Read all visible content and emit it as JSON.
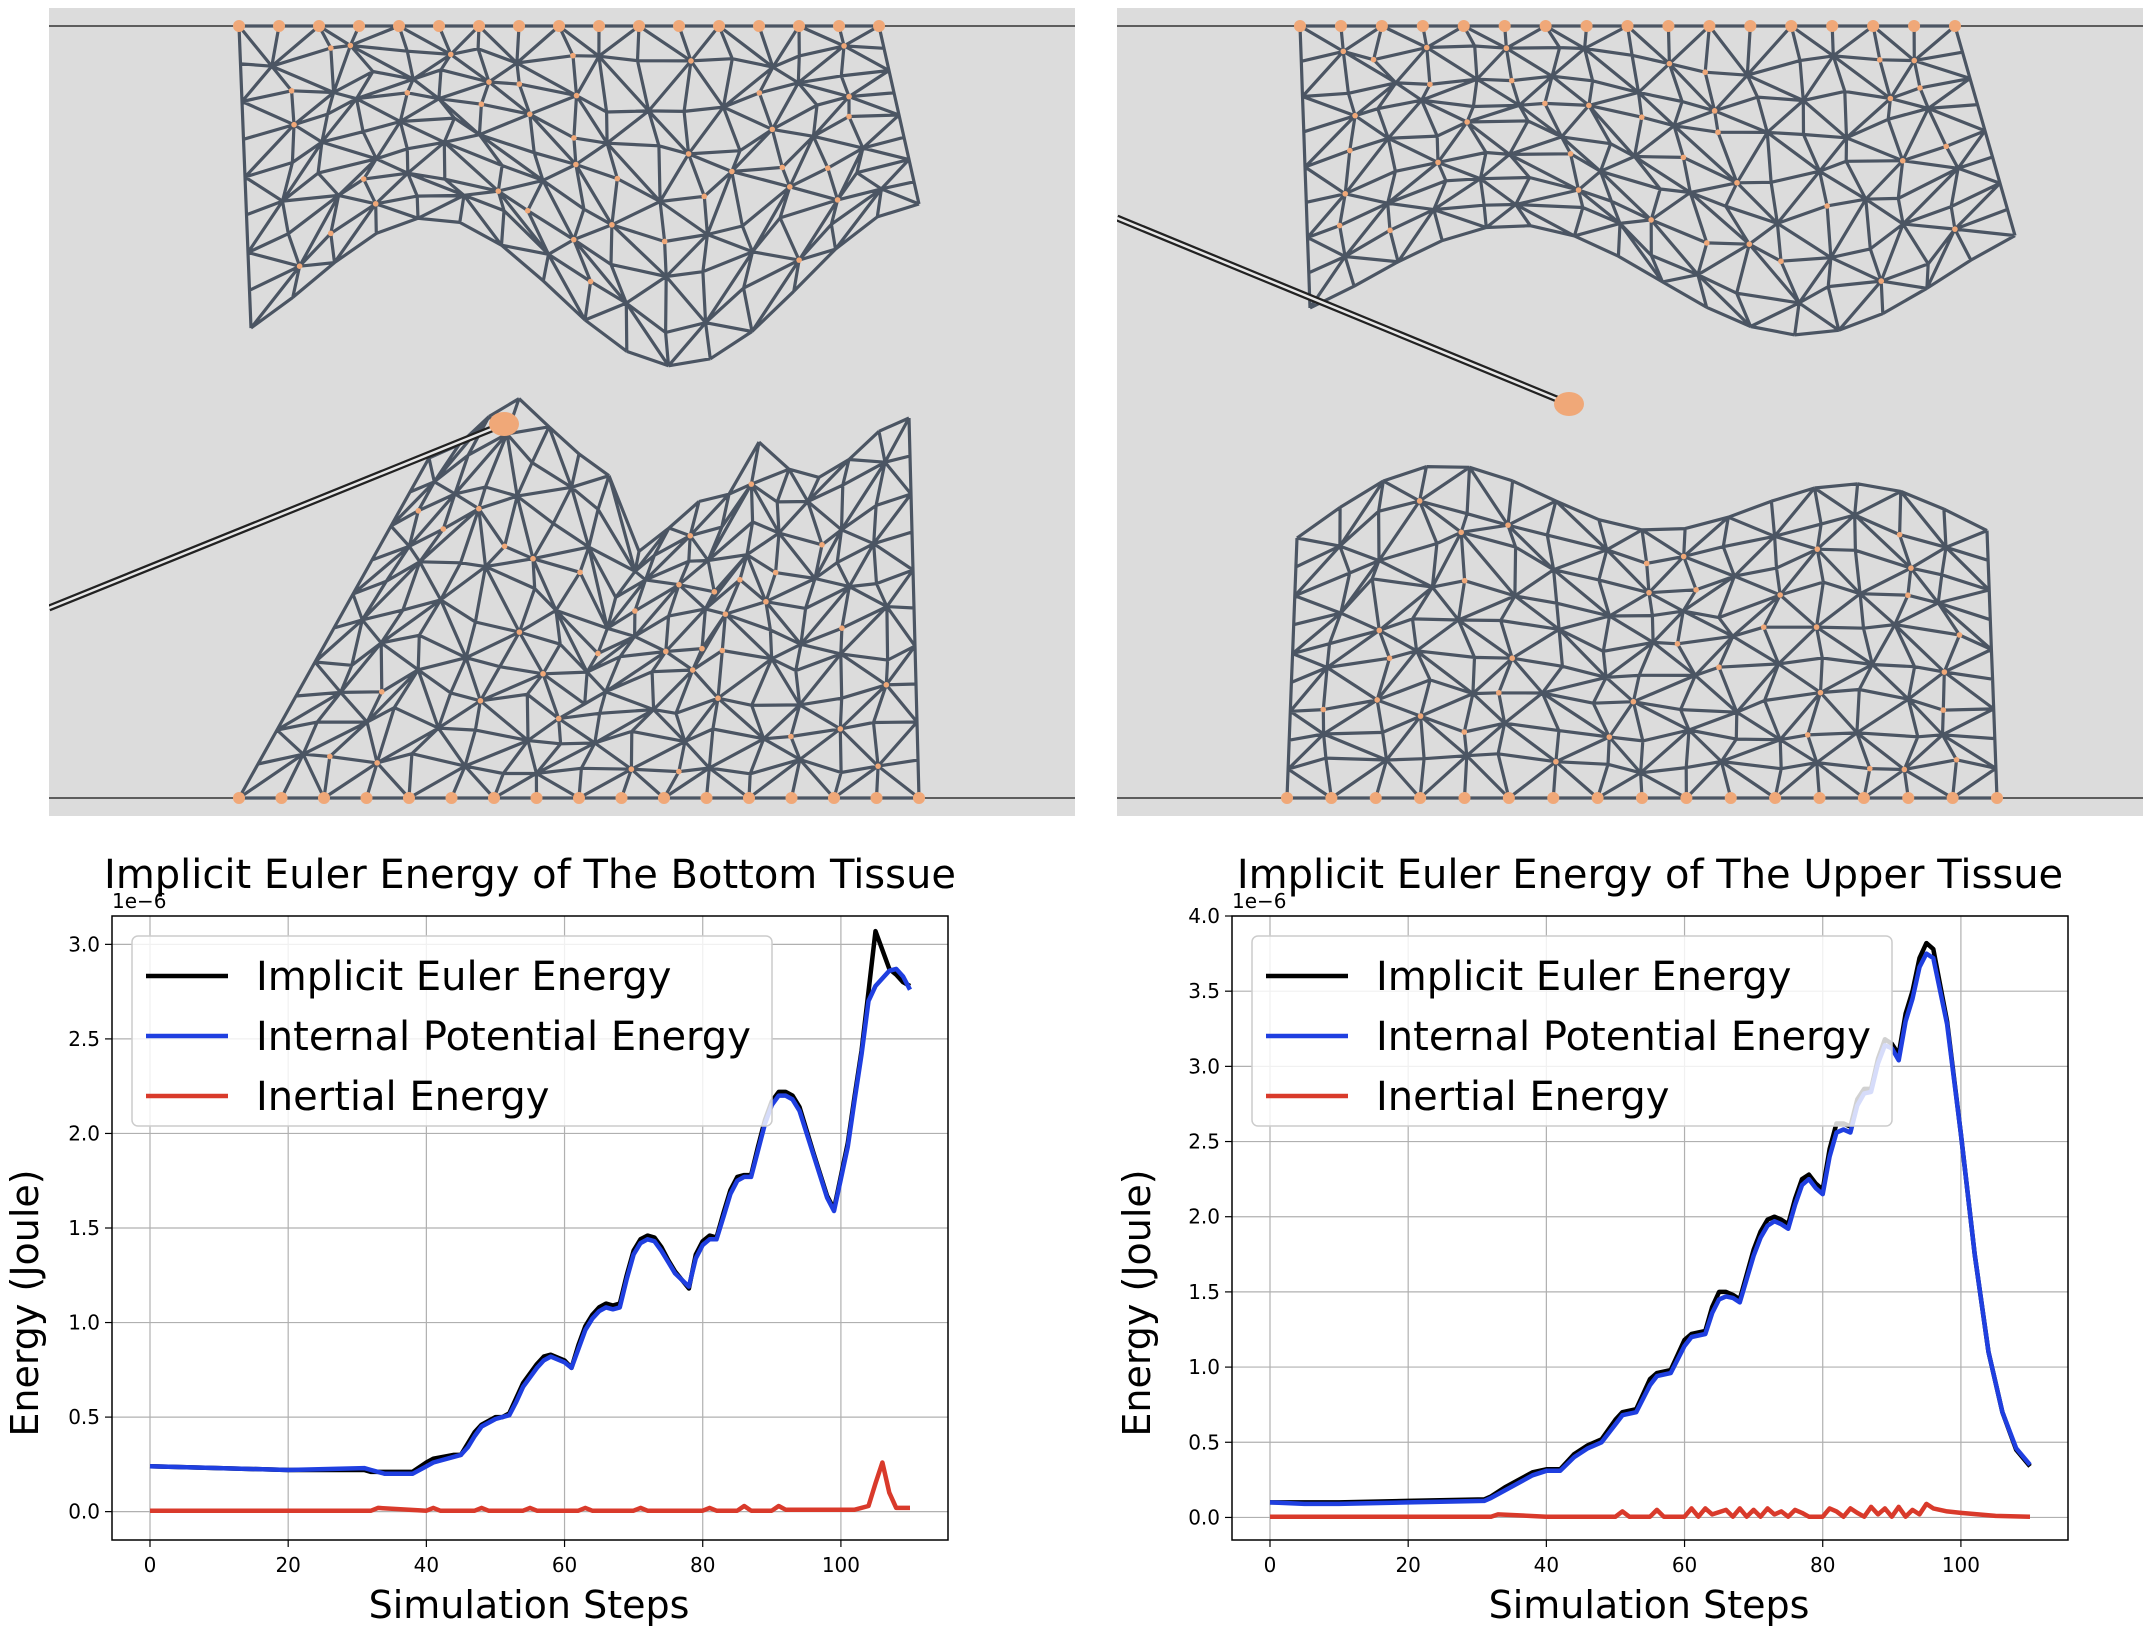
{
  "simulation": {
    "background": "#dcdcdc",
    "mesh_edge_color": "#4b5563",
    "node_color": "#f0a878",
    "panels": [
      {
        "name": "bottom-tissue-grasp"
      },
      {
        "name": "upper-tissue-grasp"
      }
    ]
  },
  "chart_data": [
    {
      "type": "line",
      "title": "Implicit Euler Energy of The Bottom Tissue",
      "xlabel": "Simulation Steps",
      "ylabel": "Energy (Joule)",
      "offset_text": "1e−6",
      "xlim": [
        -5.5,
        115.5
      ],
      "ylim": [
        -0.15,
        3.15
      ],
      "xticks": [
        0,
        20,
        40,
        60,
        80,
        100
      ],
      "yticks": [
        0.0,
        0.5,
        1.0,
        1.5,
        2.0,
        2.5,
        3.0
      ],
      "ytick_labels": [
        "0.0",
        "0.5",
        "1.0",
        "1.5",
        "2.0",
        "2.5",
        "3.0"
      ],
      "grid": true,
      "legend_position": "upper-left",
      "series": [
        {
          "name": "Implicit Euler Energy",
          "color": "#000000",
          "x": [
            0,
            10,
            20,
            31,
            32,
            34,
            38,
            40,
            41,
            44,
            45,
            46,
            47,
            48,
            50,
            51,
            52,
            53,
            54,
            56,
            57,
            58,
            60,
            61,
            62,
            63,
            64,
            65,
            66,
            67,
            68,
            69,
            70,
            71,
            72,
            73,
            74,
            75,
            76,
            78,
            79,
            80,
            81,
            82,
            83,
            84,
            85,
            86,
            87,
            88,
            89,
            90,
            91,
            92,
            93,
            94,
            96,
            98,
            99,
            101,
            102,
            103,
            104,
            105,
            106,
            107,
            108,
            109,
            110
          ],
          "y": [
            0.24,
            0.23,
            0.22,
            0.22,
            0.21,
            0.21,
            0.21,
            0.26,
            0.28,
            0.3,
            0.3,
            0.36,
            0.42,
            0.46,
            0.5,
            0.5,
            0.52,
            0.6,
            0.68,
            0.78,
            0.82,
            0.83,
            0.8,
            0.76,
            0.88,
            0.98,
            1.04,
            1.08,
            1.1,
            1.09,
            1.1,
            1.25,
            1.38,
            1.44,
            1.46,
            1.45,
            1.4,
            1.33,
            1.27,
            1.18,
            1.36,
            1.43,
            1.46,
            1.45,
            1.58,
            1.7,
            1.77,
            1.78,
            1.78,
            1.93,
            2.07,
            2.17,
            2.22,
            2.22,
            2.2,
            2.14,
            1.9,
            1.67,
            1.6,
            1.95,
            2.2,
            2.44,
            2.75,
            3.07,
            2.97,
            2.87,
            2.84,
            2.8,
            2.78
          ]
        },
        {
          "name": "Internal Potential Energy",
          "color": "#1f3fe0",
          "x": [
            0,
            10,
            20,
            31,
            32,
            34,
            38,
            40,
            41,
            44,
            45,
            46,
            47,
            48,
            50,
            51,
            52,
            53,
            54,
            56,
            57,
            58,
            60,
            61,
            62,
            63,
            64,
            65,
            66,
            67,
            68,
            69,
            70,
            71,
            72,
            73,
            74,
            75,
            76,
            78,
            79,
            80,
            81,
            82,
            83,
            84,
            85,
            86,
            87,
            88,
            89,
            90,
            91,
            92,
            93,
            94,
            96,
            98,
            99,
            101,
            102,
            103,
            104,
            105,
            106,
            107,
            108,
            109,
            110
          ],
          "y": [
            0.24,
            0.23,
            0.22,
            0.23,
            0.22,
            0.2,
            0.2,
            0.24,
            0.26,
            0.29,
            0.3,
            0.34,
            0.4,
            0.45,
            0.49,
            0.5,
            0.51,
            0.58,
            0.66,
            0.76,
            0.8,
            0.82,
            0.79,
            0.76,
            0.86,
            0.96,
            1.02,
            1.06,
            1.08,
            1.07,
            1.08,
            1.23,
            1.36,
            1.42,
            1.44,
            1.43,
            1.38,
            1.32,
            1.26,
            1.19,
            1.34,
            1.41,
            1.44,
            1.44,
            1.56,
            1.68,
            1.75,
            1.77,
            1.77,
            1.91,
            2.05,
            2.15,
            2.2,
            2.2,
            2.18,
            2.12,
            1.89,
            1.66,
            1.59,
            1.93,
            2.18,
            2.42,
            2.7,
            2.78,
            2.82,
            2.86,
            2.87,
            2.83,
            2.76
          ]
        },
        {
          "name": "Inertial Energy",
          "color": "#d93a2b",
          "x": [
            0,
            10,
            20,
            30,
            32,
            33,
            40,
            41,
            42,
            47,
            48,
            49,
            54,
            55,
            56,
            62,
            63,
            64,
            70,
            71,
            72,
            80,
            81,
            82,
            85,
            86,
            87,
            90,
            91,
            92,
            95,
            100,
            102,
            104,
            105,
            106,
            107,
            108,
            110
          ],
          "y": [
            0.005,
            0.005,
            0.005,
            0.005,
            0.005,
            0.02,
            0.005,
            0.02,
            0.005,
            0.005,
            0.02,
            0.005,
            0.005,
            0.02,
            0.005,
            0.005,
            0.02,
            0.005,
            0.005,
            0.02,
            0.005,
            0.005,
            0.02,
            0.005,
            0.005,
            0.03,
            0.005,
            0.005,
            0.03,
            0.01,
            0.01,
            0.01,
            0.01,
            0.03,
            0.15,
            0.26,
            0.1,
            0.02,
            0.02
          ]
        }
      ]
    },
    {
      "type": "line",
      "title": "Implicit Euler Energy of The Upper Tissue",
      "xlabel": "Simulation Steps",
      "ylabel": "Energy (Joule)",
      "offset_text": "1e−6",
      "xlim": [
        -5.5,
        115.5
      ],
      "ylim": [
        -0.15,
        4.0
      ],
      "xticks": [
        0,
        20,
        40,
        60,
        80,
        100
      ],
      "yticks": [
        0.0,
        0.5,
        1.0,
        1.5,
        2.0,
        2.5,
        3.0,
        3.5,
        4.0
      ],
      "ytick_labels": [
        "0.0",
        "0.5",
        "1.0",
        "1.5",
        "2.0",
        "2.5",
        "3.0",
        "3.5",
        "4.0"
      ],
      "grid": true,
      "legend_position": "upper-left",
      "series": [
        {
          "name": "Implicit Euler Energy",
          "color": "#000000",
          "x": [
            0,
            5,
            10,
            20,
            31,
            32,
            34,
            38,
            40,
            42,
            44,
            46,
            48,
            50,
            51,
            53,
            55,
            56,
            58,
            60,
            61,
            63,
            64,
            65,
            66,
            67,
            68,
            70,
            71,
            72,
            73,
            74,
            75,
            76,
            77,
            78,
            79,
            80,
            81,
            82,
            83,
            84,
            85,
            86,
            87,
            88,
            89,
            90,
            91,
            92,
            93,
            94,
            95,
            96,
            98,
            100,
            102,
            104,
            106,
            108,
            110
          ],
          "y": [
            0.1,
            0.1,
            0.1,
            0.11,
            0.12,
            0.14,
            0.2,
            0.3,
            0.32,
            0.32,
            0.42,
            0.48,
            0.52,
            0.65,
            0.7,
            0.72,
            0.92,
            0.96,
            0.98,
            1.18,
            1.22,
            1.24,
            1.4,
            1.5,
            1.5,
            1.48,
            1.45,
            1.78,
            1.9,
            1.98,
            2.0,
            1.98,
            1.95,
            2.12,
            2.25,
            2.28,
            2.22,
            2.18,
            2.45,
            2.62,
            2.62,
            2.6,
            2.78,
            2.85,
            2.85,
            3.05,
            3.18,
            3.15,
            3.08,
            3.35,
            3.5,
            3.72,
            3.82,
            3.78,
            3.3,
            2.55,
            1.75,
            1.1,
            0.7,
            0.45,
            0.34
          ]
        },
        {
          "name": "Internal Potential Energy",
          "color": "#1f3fe0",
          "x": [
            0,
            5,
            10,
            20,
            31,
            32,
            34,
            38,
            40,
            42,
            44,
            46,
            48,
            50,
            51,
            53,
            55,
            56,
            58,
            60,
            61,
            63,
            64,
            65,
            66,
            67,
            68,
            70,
            71,
            72,
            73,
            74,
            75,
            76,
            77,
            78,
            79,
            80,
            81,
            82,
            83,
            84,
            85,
            86,
            87,
            88,
            89,
            90,
            91,
            92,
            93,
            94,
            95,
            96,
            98,
            100,
            102,
            104,
            106,
            108,
            110
          ],
          "y": [
            0.1,
            0.09,
            0.09,
            0.1,
            0.11,
            0.13,
            0.18,
            0.28,
            0.31,
            0.31,
            0.4,
            0.46,
            0.5,
            0.62,
            0.68,
            0.7,
            0.88,
            0.94,
            0.96,
            1.14,
            1.2,
            1.22,
            1.36,
            1.45,
            1.47,
            1.46,
            1.43,
            1.74,
            1.86,
            1.94,
            1.97,
            1.95,
            1.92,
            2.08,
            2.21,
            2.25,
            2.19,
            2.15,
            2.4,
            2.56,
            2.58,
            2.56,
            2.74,
            2.82,
            2.83,
            3.02,
            3.14,
            3.12,
            3.04,
            3.3,
            3.45,
            3.66,
            3.75,
            3.72,
            3.28,
            2.55,
            1.75,
            1.1,
            0.7,
            0.46,
            0.35
          ]
        },
        {
          "name": "Inertial Energy",
          "color": "#d93a2b",
          "x": [
            0,
            10,
            20,
            30,
            32,
            33,
            40,
            50,
            51,
            52,
            55,
            56,
            57,
            60,
            61,
            62,
            63,
            64,
            66,
            67,
            68,
            69,
            70,
            71,
            72,
            73,
            74,
            75,
            76,
            77,
            78,
            80,
            81,
            82,
            83,
            84,
            85,
            86,
            87,
            88,
            89,
            90,
            91,
            92,
            93,
            94,
            95,
            96,
            98,
            100,
            105,
            110
          ],
          "y": [
            0.005,
            0.005,
            0.005,
            0.005,
            0.005,
            0.02,
            0.005,
            0.005,
            0.04,
            0.005,
            0.005,
            0.05,
            0.005,
            0.005,
            0.06,
            0.005,
            0.06,
            0.02,
            0.05,
            0.005,
            0.06,
            0.005,
            0.05,
            0.005,
            0.06,
            0.02,
            0.04,
            0.005,
            0.05,
            0.03,
            0.005,
            0.005,
            0.06,
            0.04,
            0.005,
            0.06,
            0.03,
            0.005,
            0.07,
            0.02,
            0.06,
            0.005,
            0.07,
            0.005,
            0.05,
            0.02,
            0.09,
            0.06,
            0.04,
            0.03,
            0.01,
            0.005
          ]
        }
      ]
    }
  ]
}
